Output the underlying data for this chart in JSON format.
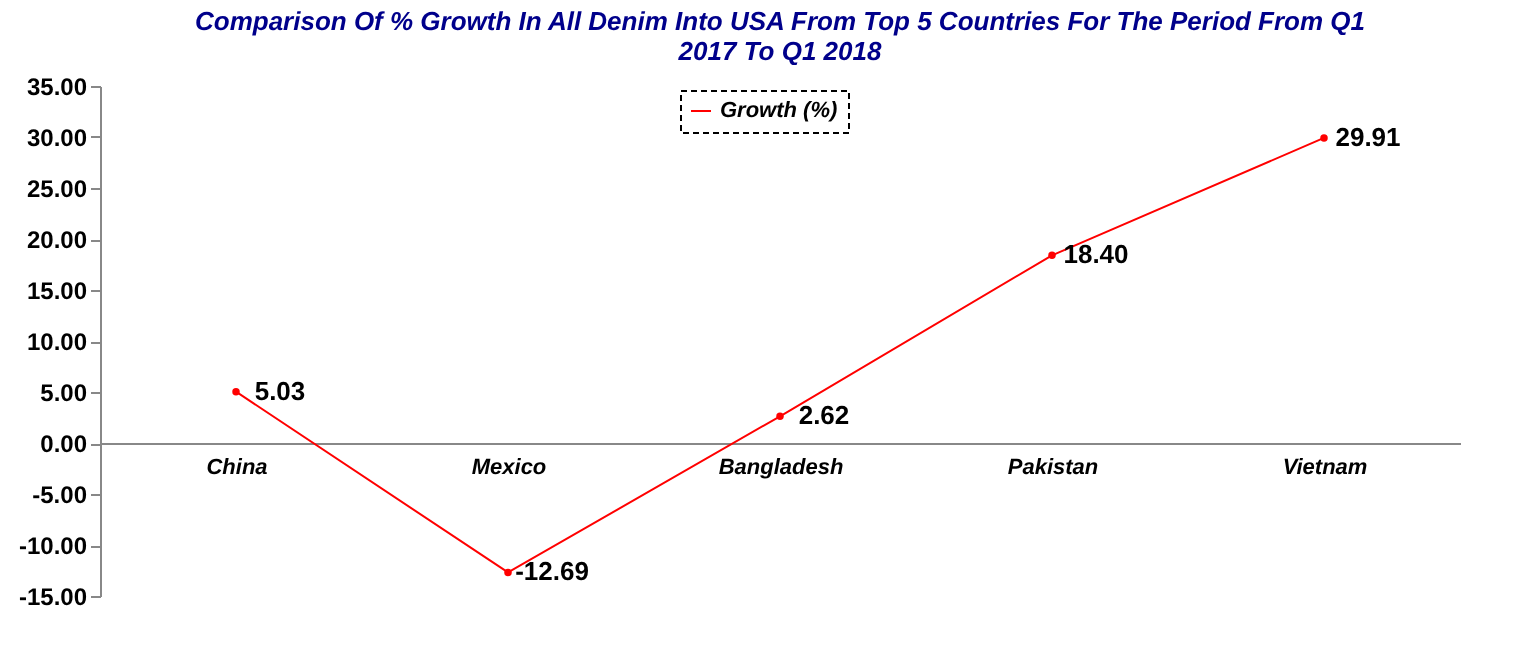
{
  "chart_data": {
    "type": "line",
    "title": "Comparison Of % Growth In All Denim Into USA From Top 5 Countries For The Period From Q1 2017 To Q1 2018",
    "categories": [
      "China",
      "Mexico",
      "Bangladesh",
      "Pakistan",
      "Vietnam"
    ],
    "series": [
      {
        "name": "Growth (%)",
        "color": "#ff0000",
        "values": [
          5.03,
          -12.69,
          2.62,
          18.4,
          29.91
        ],
        "value_labels": [
          "5.03",
          "-12.69",
          "2.62",
          "18.40",
          "29.91"
        ]
      }
    ],
    "ylim": [
      -15,
      35
    ],
    "yticks": [
      {
        "value": -15,
        "label": "-15.00"
      },
      {
        "value": -10,
        "label": "-10.00"
      },
      {
        "value": -5,
        "label": "-5.00"
      },
      {
        "value": 0,
        "label": "0.00"
      },
      {
        "value": 5,
        "label": "5.00"
      },
      {
        "value": 10,
        "label": "10.00"
      },
      {
        "value": 15,
        "label": "15.00"
      },
      {
        "value": 20,
        "label": "20.00"
      },
      {
        "value": 25,
        "label": "25.00"
      },
      {
        "value": 30,
        "label": "30.00"
      },
      {
        "value": 35,
        "label": "35.00"
      }
    ],
    "legend": "top",
    "marker": "circle",
    "grid": false
  }
}
